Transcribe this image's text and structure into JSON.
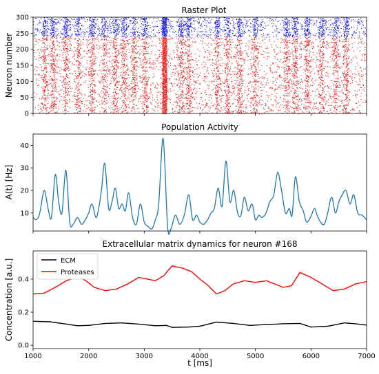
{
  "chart_data": [
    {
      "type": "scatter",
      "title": "Raster Plot",
      "xlabel": "",
      "ylabel": "Neuron number",
      "xlim": [
        1000,
        7000
      ],
      "ylim": [
        0,
        300
      ],
      "yticks": [
        0,
        50,
        100,
        150,
        200,
        250,
        300
      ],
      "series": [
        {
          "group": "excitatory",
          "neuron_range": [
            0,
            240
          ],
          "color": "#ff0000"
        },
        {
          "group": "inhibitory",
          "neuron_range": [
            240,
            300
          ],
          "color": "#0000ff"
        }
      ],
      "burst_times_ms": [
        1200,
        1350,
        1580,
        1800,
        2050,
        2270,
        2470,
        2620,
        2800,
        3000,
        3350,
        3650,
        3780,
        4300,
        4480,
        4700,
        4980,
        5550,
        5700,
        5920,
        6180,
        6430,
        6620
      ]
    },
    {
      "type": "line",
      "title": "Population Activity",
      "xlabel": "",
      "ylabel": "A(t) [Hz]",
      "xlim": [
        1000,
        7000
      ],
      "ylim": [
        2,
        45
      ],
      "yticks": [
        10,
        20,
        30,
        40
      ],
      "color": "#1f77b4",
      "x": [
        1000,
        1060,
        1120,
        1200,
        1270,
        1330,
        1400,
        1460,
        1520,
        1590,
        1660,
        1720,
        1800,
        1870,
        1940,
        2000,
        2060,
        2130,
        2180,
        2230,
        2290,
        2360,
        2420,
        2480,
        2540,
        2600,
        2660,
        2720,
        2790,
        2860,
        2930,
        3000,
        3070,
        3140,
        3200,
        3260,
        3340,
        3420,
        3480,
        3560,
        3640,
        3720,
        3800,
        3870,
        3940,
        4000,
        4070,
        4140,
        4200,
        4260,
        4330,
        4400,
        4470,
        4540,
        4610,
        4680,
        4740,
        4800,
        4870,
        4940,
        5000,
        5060,
        5120,
        5190,
        5260,
        5330,
        5400,
        5470,
        5540,
        5610,
        5660,
        5720,
        5790,
        5860,
        5920,
        5990,
        6060,
        6110,
        6170,
        6240,
        6300,
        6370,
        6440,
        6500,
        6560,
        6630,
        6700,
        6770,
        6840,
        6920,
        7000
      ],
      "y": [
        8,
        7,
        10,
        20,
        12,
        8,
        27,
        15,
        10,
        29,
        6,
        5,
        8,
        5,
        7,
        10,
        14,
        8,
        12,
        20,
        32,
        12,
        15,
        21,
        12,
        14,
        11,
        19,
        8,
        5,
        14,
        6,
        4,
        3,
        7,
        14,
        43,
        4,
        3,
        9,
        5,
        9,
        18,
        7,
        9,
        6,
        5,
        7,
        10,
        12,
        21,
        13,
        33,
        15,
        20,
        10,
        9,
        17,
        11,
        14,
        7,
        9,
        8,
        10,
        15,
        18,
        28,
        20,
        10,
        12,
        9,
        26,
        15,
        11,
        6,
        8,
        12,
        9,
        6,
        5,
        10,
        17,
        10,
        15,
        18,
        20,
        14,
        18,
        10,
        9,
        7
      ]
    },
    {
      "type": "line",
      "title": "Extracellular matrix dynamics for neuron #168",
      "xlabel": "t [ms]",
      "ylabel": "Concentration [a.u.]",
      "xlim": [
        1000,
        7000
      ],
      "ylim": [
        -0.02,
        0.57
      ],
      "xticks": [
        1000,
        2000,
        3000,
        4000,
        5000,
        6000,
        7000
      ],
      "yticks": [
        0.0,
        0.2,
        0.4
      ],
      "legend": "top-left",
      "series": [
        {
          "name": "ECM",
          "color": "#000000",
          "x": [
            1000,
            1300,
            1600,
            1800,
            2000,
            2300,
            2600,
            2900,
            3200,
            3400,
            3500,
            3800,
            4000,
            4300,
            4600,
            4900,
            5200,
            5500,
            5800,
            6000,
            6300,
            6600,
            6800,
            7000
          ],
          "y": [
            0.145,
            0.142,
            0.128,
            0.118,
            0.12,
            0.132,
            0.135,
            0.128,
            0.118,
            0.12,
            0.108,
            0.11,
            0.115,
            0.14,
            0.132,
            0.12,
            0.125,
            0.13,
            0.132,
            0.11,
            0.115,
            0.135,
            0.13,
            0.122
          ]
        },
        {
          "name": "Proteases",
          "color": "#ff0000",
          "x": [
            1000,
            1200,
            1400,
            1600,
            1800,
            1950,
            2100,
            2300,
            2500,
            2700,
            2900,
            3050,
            3200,
            3350,
            3500,
            3700,
            3850,
            4000,
            4150,
            4300,
            4450,
            4600,
            4800,
            5000,
            5200,
            5350,
            5500,
            5650,
            5800,
            6000,
            6200,
            6400,
            6600,
            6800,
            7000
          ],
          "y": [
            0.31,
            0.315,
            0.35,
            0.39,
            0.415,
            0.39,
            0.35,
            0.33,
            0.34,
            0.37,
            0.41,
            0.4,
            0.39,
            0.42,
            0.48,
            0.465,
            0.445,
            0.4,
            0.36,
            0.31,
            0.33,
            0.37,
            0.39,
            0.38,
            0.39,
            0.37,
            0.35,
            0.36,
            0.44,
            0.41,
            0.37,
            0.33,
            0.34,
            0.37,
            0.385
          ]
        }
      ]
    }
  ]
}
